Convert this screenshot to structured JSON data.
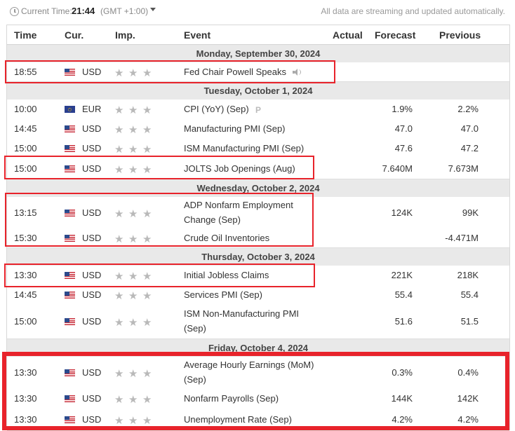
{
  "topbar": {
    "current_time_label": "Current Time:",
    "time": "21:44",
    "gmt": "(GMT +1:00)",
    "stream_note": "All data are streaming and updated automatically."
  },
  "columns": {
    "time": "Time",
    "currency": "Cur.",
    "importance": "Imp.",
    "event": "Event",
    "actual": "Actual",
    "forecast": "Forecast",
    "previous": "Previous"
  },
  "days": [
    "Monday, September 30, 2024",
    "Tuesday, October 1, 2024",
    "Wednesday, October 2, 2024",
    "Thursday, October 3, 2024",
    "Friday, October 4, 2024"
  ],
  "events": [
    {
      "time": "18:55",
      "cur": "USD",
      "flag": "us-flag-icon",
      "stars": 3,
      "event_line1": "Fed Chair Powell Speaks",
      "event_line2": "",
      "actual": "",
      "forecast": "",
      "previous": "",
      "speech": true
    },
    {
      "time": "10:00",
      "cur": "EUR",
      "flag": "eu-flag-icon",
      "stars": 3,
      "event_line1": "CPI (YoY) (Sep)",
      "event_line2": "",
      "actual": "",
      "forecast": "1.9%",
      "previous": "2.2%",
      "prelim": "P"
    },
    {
      "time": "14:45",
      "cur": "USD",
      "flag": "us-flag-icon",
      "stars": 3,
      "event_line1": "Manufacturing PMI (Sep)",
      "event_line2": "",
      "actual": "",
      "forecast": "47.0",
      "previous": "47.0"
    },
    {
      "time": "15:00",
      "cur": "USD",
      "flag": "us-flag-icon",
      "stars": 3,
      "event_line1": "ISM Manufacturing PMI (Sep)",
      "event_line2": "",
      "actual": "",
      "forecast": "47.6",
      "previous": "47.2"
    },
    {
      "time": "15:00",
      "cur": "USD",
      "flag": "us-flag-icon",
      "stars": 3,
      "event_line1": "JOLTS Job Openings (Aug)",
      "event_line2": "",
      "actual": "",
      "forecast": "7.640M",
      "previous": "7.673M"
    },
    {
      "time": "13:15",
      "cur": "USD",
      "flag": "us-flag-icon",
      "stars": 3,
      "event_line1": "ADP Nonfarm Employment",
      "event_line2": "Change (Sep)",
      "actual": "",
      "forecast": "124K",
      "previous": "99K"
    },
    {
      "time": "15:30",
      "cur": "USD",
      "flag": "us-flag-icon",
      "stars": 3,
      "event_line1": "Crude Oil Inventories",
      "event_line2": "",
      "actual": "",
      "forecast": "",
      "previous": "-4.471M"
    },
    {
      "time": "13:30",
      "cur": "USD",
      "flag": "us-flag-icon",
      "stars": 3,
      "event_line1": "Initial Jobless Claims",
      "event_line2": "",
      "actual": "",
      "forecast": "221K",
      "previous": "218K"
    },
    {
      "time": "14:45",
      "cur": "USD",
      "flag": "us-flag-icon",
      "stars": 3,
      "event_line1": "Services PMI (Sep)",
      "event_line2": "",
      "actual": "",
      "forecast": "55.4",
      "previous": "55.4"
    },
    {
      "time": "15:00",
      "cur": "USD",
      "flag": "us-flag-icon",
      "stars": 3,
      "event_line1": "ISM Non-Manufacturing PMI",
      "event_line2": "(Sep)",
      "actual": "",
      "forecast": "51.6",
      "previous": "51.5"
    },
    {
      "time": "13:30",
      "cur": "USD",
      "flag": "us-flag-icon",
      "stars": 3,
      "event_line1": "Average Hourly Earnings (MoM)",
      "event_line2": "(Sep)",
      "actual": "",
      "forecast": "0.3%",
      "previous": "0.4%"
    },
    {
      "time": "13:30",
      "cur": "USD",
      "flag": "us-flag-icon",
      "stars": 3,
      "event_line1": "Nonfarm Payrolls (Sep)",
      "event_line2": "",
      "actual": "",
      "forecast": "144K",
      "previous": "142K"
    },
    {
      "time": "13:30",
      "cur": "USD",
      "flag": "us-flag-icon",
      "stars": 3,
      "event_line1": "Unemployment Rate (Sep)",
      "event_line2": "",
      "actual": "",
      "forecast": "4.2%",
      "previous": "4.2%"
    }
  ],
  "highlight_color": "#e8232b",
  "star_color": "#b9b9b9"
}
